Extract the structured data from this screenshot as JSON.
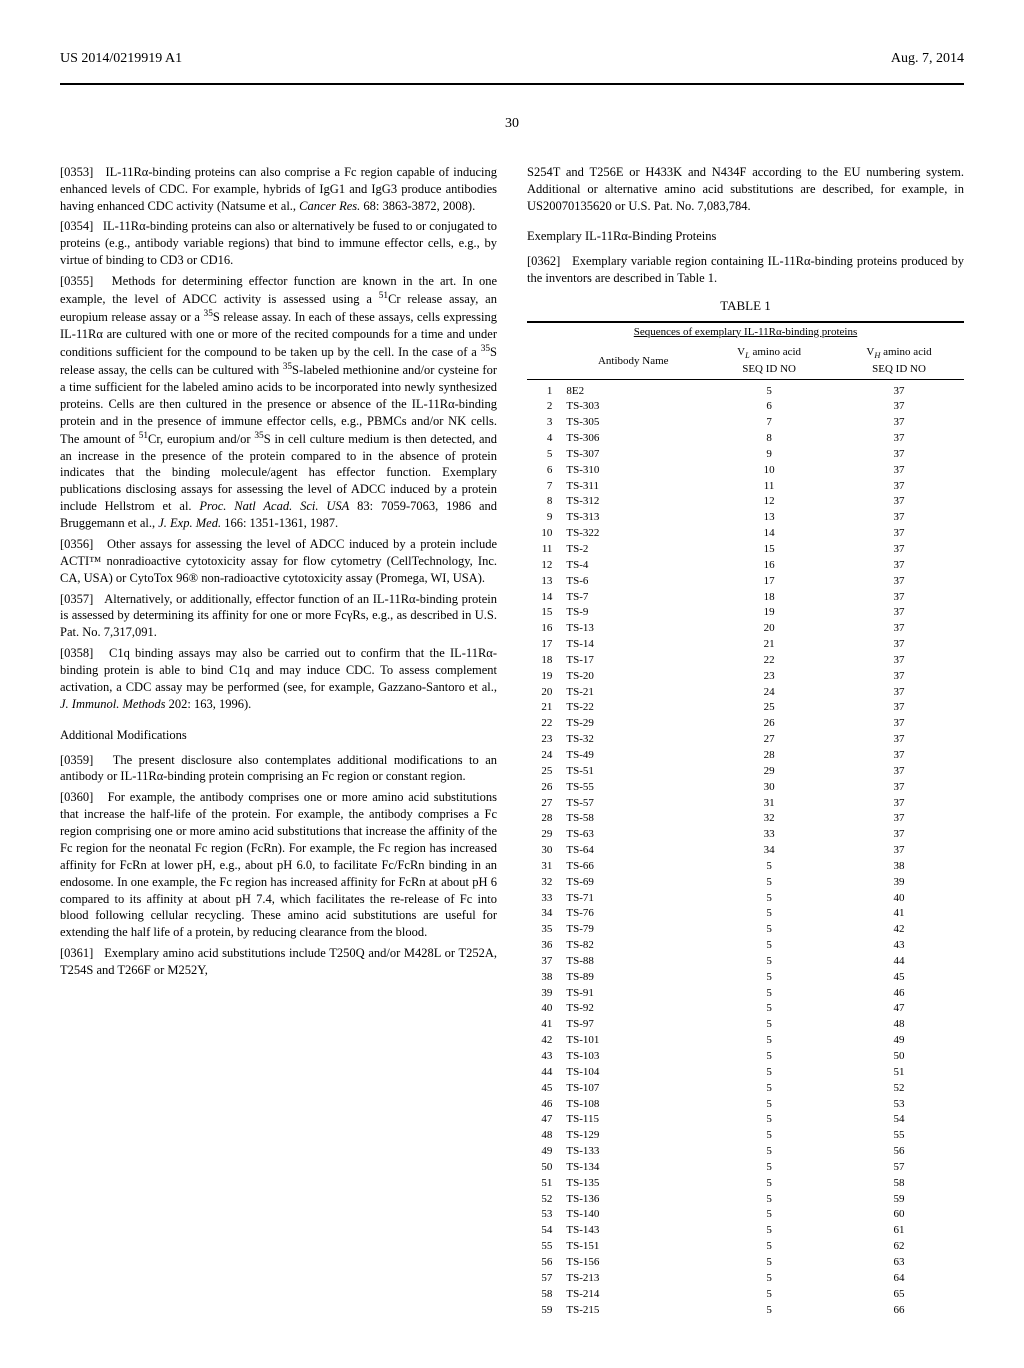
{
  "header": {
    "pubNumber": "US 2014/0219919 A1",
    "date": "Aug. 7, 2014"
  },
  "pageNumber": "30",
  "leftColumn": {
    "p0353": "IL-11Rα-binding proteins can also comprise a Fc region capable of inducing enhanced levels of CDC. For example, hybrids of IgG1 and IgG3 produce antibodies having enhanced CDC activity (Natsume et al., ",
    "p0353_cite": "Cancer Res.",
    "p0353_tail": " 68: 3863-3872, 2008).",
    "p0354": "IL-11Rα-binding proteins can also or alternatively be fused to or conjugated to proteins (e.g., antibody variable regions) that bind to immune effector cells, e.g., by virtue of binding to CD3 or CD16.",
    "p0355a": "Methods for determining effector function are known in the art. In one example, the level of ADCC activity is assessed using a ",
    "p0355b": "Cr release assay, an europium release assay or a ",
    "p0355c": "S release assay. In each of these assays, cells expressing IL-11Rα are cultured with one or more of the recited compounds for a time and under conditions sufficient for the compound to be taken up by the cell. In the case of a ",
    "p0355d": "S release assay, the cells can be cultured with ",
    "p0355e": "S-labeled methionine and/or cysteine for a time sufficient for the labeled amino acids to be incorporated into newly synthesized proteins. Cells are then cultured in the presence or absence of the IL-11Rα-binding protein and in the presence of immune effector cells, e.g., PBMCs and/or NK cells. The amount of ",
    "p0355f": "Cr, europium and/or ",
    "p0355g": "S in cell culture medium is then detected, and an increase in the presence of the protein compared to in the absence of protein indicates that the binding molecule/agent has effector function. Exemplary publications disclosing assays for assessing the level of ADCC induced by a protein include Hellstrom et al. ",
    "p0355_cite1": "Proc. Natl Acad. Sci. USA",
    "p0355h": " 83: 7059-7063, 1986 and Bruggemann et al., ",
    "p0355_cite2": "J. Exp. Med.",
    "p0355i": " 166: 1351-1361, 1987.",
    "p0356": "Other assays for assessing the level of ADCC induced by a protein include ACTI™ nonradioactive cytotoxicity assay for flow cytometry (CellTechnology, Inc. CA, USA) or CytoTox 96® non-radioactive cytotoxicity assay (Promega, WI, USA).",
    "p0357": "Alternatively, or additionally, effector function of an IL-11Rα-binding protein is assessed by determining its affinity for one or more FcγRs, e.g., as described in U.S. Pat. No. 7,317,091.",
    "p0358a": "C1q binding assays may also be carried out to confirm that the IL-11Rα-binding protein is able to bind C1q and may induce CDC. To assess complement activation, a CDC assay may be performed (see, for example, Gazzano-Santoro et al., ",
    "p0358_cite": "J. Immunol. Methods",
    "p0358b": " 202: 163, 1996).",
    "subheading1": "Additional Modifications",
    "p0359": "The present disclosure also contemplates additional modifications to an antibody or IL-11Rα-binding protein comprising an Fc region or constant region.",
    "p0360": "For example, the antibody comprises one or more amino acid substitutions that increase the half-life of the protein. For example, the antibody comprises a Fc region comprising one or more amino acid substitutions that increase the affinity of the Fc region for the neonatal Fc region (FcRn). For example, the Fc region has increased affinity for FcRn at lower pH, e.g., about pH 6.0, to facilitate Fc/FcRn binding in an endosome. In one example, the Fc region has increased affinity for FcRn at about pH 6 compared to its affinity at about pH 7.4, which facilitates the re-release of Fc into blood following cellular recycling. These amino acid substitutions are useful for extending the half life of a protein, by reducing clearance from the blood.",
    "p0361": "Exemplary amino acid substitutions include T250Q and/or M428L or T252A, T254S and T266F or M252Y,"
  },
  "rightColumn": {
    "contText": "S254T and T256E or H433K and N434F according to the EU numbering system. Additional or alternative amino acid substitutions are described, for example, in US20070135620 or U.S. Pat. No. 7,083,784.",
    "subheading2": "Exemplary IL-11Rα-Binding Proteins",
    "p0362": "Exemplary variable region containing IL-11Rα-binding proteins produced by the inventors are described in Table 1.",
    "tableTitle": "TABLE 1",
    "tableSubtitle": "Sequences of exemplary IL-11Rα-binding proteins",
    "tableHeaders": {
      "col1": "Antibody Name",
      "col2a": "V",
      "col2b": " amino acid",
      "col2c": "SEQ ID NO",
      "col3a": "V",
      "col3b": " amino acid",
      "col3c": "SEQ ID NO"
    },
    "tableRows": [
      {
        "i": "1",
        "name": "8E2",
        "vl": "5",
        "vh": "37"
      },
      {
        "i": "2",
        "name": "TS-303",
        "vl": "6",
        "vh": "37"
      },
      {
        "i": "3",
        "name": "TS-305",
        "vl": "7",
        "vh": "37"
      },
      {
        "i": "4",
        "name": "TS-306",
        "vl": "8",
        "vh": "37"
      },
      {
        "i": "5",
        "name": "TS-307",
        "vl": "9",
        "vh": "37"
      },
      {
        "i": "6",
        "name": "TS-310",
        "vl": "10",
        "vh": "37"
      },
      {
        "i": "7",
        "name": "TS-311",
        "vl": "11",
        "vh": "37"
      },
      {
        "i": "8",
        "name": "TS-312",
        "vl": "12",
        "vh": "37"
      },
      {
        "i": "9",
        "name": "TS-313",
        "vl": "13",
        "vh": "37"
      },
      {
        "i": "10",
        "name": "TS-322",
        "vl": "14",
        "vh": "37"
      },
      {
        "i": "11",
        "name": "TS-2",
        "vl": "15",
        "vh": "37"
      },
      {
        "i": "12",
        "name": "TS-4",
        "vl": "16",
        "vh": "37"
      },
      {
        "i": "13",
        "name": "TS-6",
        "vl": "17",
        "vh": "37"
      },
      {
        "i": "14",
        "name": "TS-7",
        "vl": "18",
        "vh": "37"
      },
      {
        "i": "15",
        "name": "TS-9",
        "vl": "19",
        "vh": "37"
      },
      {
        "i": "16",
        "name": "TS-13",
        "vl": "20",
        "vh": "37"
      },
      {
        "i": "17",
        "name": "TS-14",
        "vl": "21",
        "vh": "37"
      },
      {
        "i": "18",
        "name": "TS-17",
        "vl": "22",
        "vh": "37"
      },
      {
        "i": "19",
        "name": "TS-20",
        "vl": "23",
        "vh": "37"
      },
      {
        "i": "20",
        "name": "TS-21",
        "vl": "24",
        "vh": "37"
      },
      {
        "i": "21",
        "name": "TS-22",
        "vl": "25",
        "vh": "37"
      },
      {
        "i": "22",
        "name": "TS-29",
        "vl": "26",
        "vh": "37"
      },
      {
        "i": "23",
        "name": "TS-32",
        "vl": "27",
        "vh": "37"
      },
      {
        "i": "24",
        "name": "TS-49",
        "vl": "28",
        "vh": "37"
      },
      {
        "i": "25",
        "name": "TS-51",
        "vl": "29",
        "vh": "37"
      },
      {
        "i": "26",
        "name": "TS-55",
        "vl": "30",
        "vh": "37"
      },
      {
        "i": "27",
        "name": "TS-57",
        "vl": "31",
        "vh": "37"
      },
      {
        "i": "28",
        "name": "TS-58",
        "vl": "32",
        "vh": "37"
      },
      {
        "i": "29",
        "name": "TS-63",
        "vl": "33",
        "vh": "37"
      },
      {
        "i": "30",
        "name": "TS-64",
        "vl": "34",
        "vh": "37"
      },
      {
        "i": "31",
        "name": "TS-66",
        "vl": "5",
        "vh": "38"
      },
      {
        "i": "32",
        "name": "TS-69",
        "vl": "5",
        "vh": "39"
      },
      {
        "i": "33",
        "name": "TS-71",
        "vl": "5",
        "vh": "40"
      },
      {
        "i": "34",
        "name": "TS-76",
        "vl": "5",
        "vh": "41"
      },
      {
        "i": "35",
        "name": "TS-79",
        "vl": "5",
        "vh": "42"
      },
      {
        "i": "36",
        "name": "TS-82",
        "vl": "5",
        "vh": "43"
      },
      {
        "i": "37",
        "name": "TS-88",
        "vl": "5",
        "vh": "44"
      },
      {
        "i": "38",
        "name": "TS-89",
        "vl": "5",
        "vh": "45"
      },
      {
        "i": "39",
        "name": "TS-91",
        "vl": "5",
        "vh": "46"
      },
      {
        "i": "40",
        "name": "TS-92",
        "vl": "5",
        "vh": "47"
      },
      {
        "i": "41",
        "name": "TS-97",
        "vl": "5",
        "vh": "48"
      },
      {
        "i": "42",
        "name": "TS-101",
        "vl": "5",
        "vh": "49"
      },
      {
        "i": "43",
        "name": "TS-103",
        "vl": "5",
        "vh": "50"
      },
      {
        "i": "44",
        "name": "TS-104",
        "vl": "5",
        "vh": "51"
      },
      {
        "i": "45",
        "name": "TS-107",
        "vl": "5",
        "vh": "52"
      },
      {
        "i": "46",
        "name": "TS-108",
        "vl": "5",
        "vh": "53"
      },
      {
        "i": "47",
        "name": "TS-115",
        "vl": "5",
        "vh": "54"
      },
      {
        "i": "48",
        "name": "TS-129",
        "vl": "5",
        "vh": "55"
      },
      {
        "i": "49",
        "name": "TS-133",
        "vl": "5",
        "vh": "56"
      },
      {
        "i": "50",
        "name": "TS-134",
        "vl": "5",
        "vh": "57"
      },
      {
        "i": "51",
        "name": "TS-135",
        "vl": "5",
        "vh": "58"
      },
      {
        "i": "52",
        "name": "TS-136",
        "vl": "5",
        "vh": "59"
      },
      {
        "i": "53",
        "name": "TS-140",
        "vl": "5",
        "vh": "60"
      },
      {
        "i": "54",
        "name": "TS-143",
        "vl": "5",
        "vh": "61"
      },
      {
        "i": "55",
        "name": "TS-151",
        "vl": "5",
        "vh": "62"
      },
      {
        "i": "56",
        "name": "TS-156",
        "vl": "5",
        "vh": "63"
      },
      {
        "i": "57",
        "name": "TS-213",
        "vl": "5",
        "vh": "64"
      },
      {
        "i": "58",
        "name": "TS-214",
        "vl": "5",
        "vh": "65"
      },
      {
        "i": "59",
        "name": "TS-215",
        "vl": "5",
        "vh": "66"
      }
    ]
  }
}
